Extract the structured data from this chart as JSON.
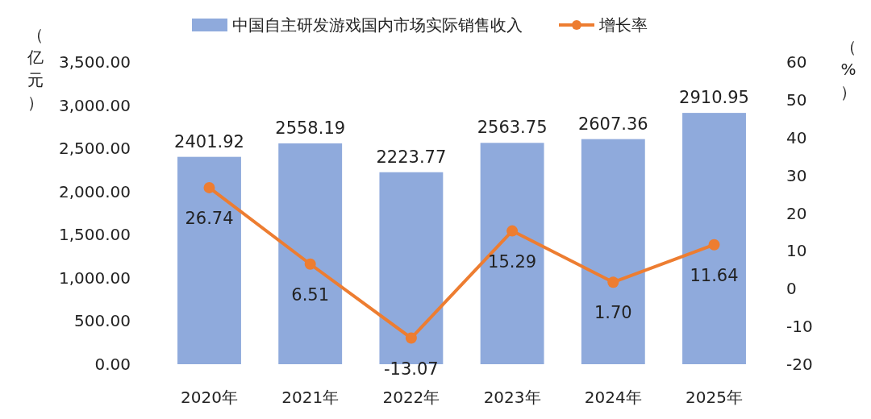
{
  "chart_data": {
    "type": "bar",
    "ylabel": "（亿元）",
    "y2label": "（%）",
    "categories": [
      "2020年",
      "2021年",
      "2022年",
      "2023年",
      "2024年",
      "2025年"
    ],
    "series": [
      {
        "name": "中国自主研发游戏国内市场实际销售收入",
        "color": "#8faadc",
        "values": [
          2401.92,
          2558.19,
          2223.77,
          2563.75,
          2607.36,
          2910.95
        ],
        "value_labels": [
          "2401.92",
          "2558.19",
          "2223.77",
          "2563.75",
          "2607.36",
          "2910.95"
        ]
      },
      {
        "name": "增长率",
        "type": "line",
        "axis": "y2",
        "color": "#ed7d31",
        "marker": "circle",
        "values": [
          26.74,
          6.51,
          -13.07,
          15.29,
          1.7,
          11.64
        ],
        "value_labels": [
          "26.74",
          "6.51",
          "-13.07",
          "15.29",
          "1.70",
          "11.64"
        ]
      }
    ],
    "ylim": [
      0,
      3500
    ],
    "yticks": [
      {
        "value": 0,
        "label": "0.00"
      },
      {
        "value": 500,
        "label": "500.00"
      },
      {
        "value": 1000,
        "label": "1,000.00"
      },
      {
        "value": 1500,
        "label": "1,500.00"
      },
      {
        "value": 2000,
        "label": "2,000.00"
      },
      {
        "value": 2500,
        "label": "2,500.00"
      },
      {
        "value": 3000,
        "label": "3,000.00"
      },
      {
        "value": 3500,
        "label": "3,500.00"
      }
    ],
    "y2lim": [
      -20,
      60
    ],
    "y2ticks": [
      -20,
      -10,
      0,
      10,
      20,
      30,
      40,
      50,
      60
    ],
    "legend": "top",
    "grid": false
  }
}
